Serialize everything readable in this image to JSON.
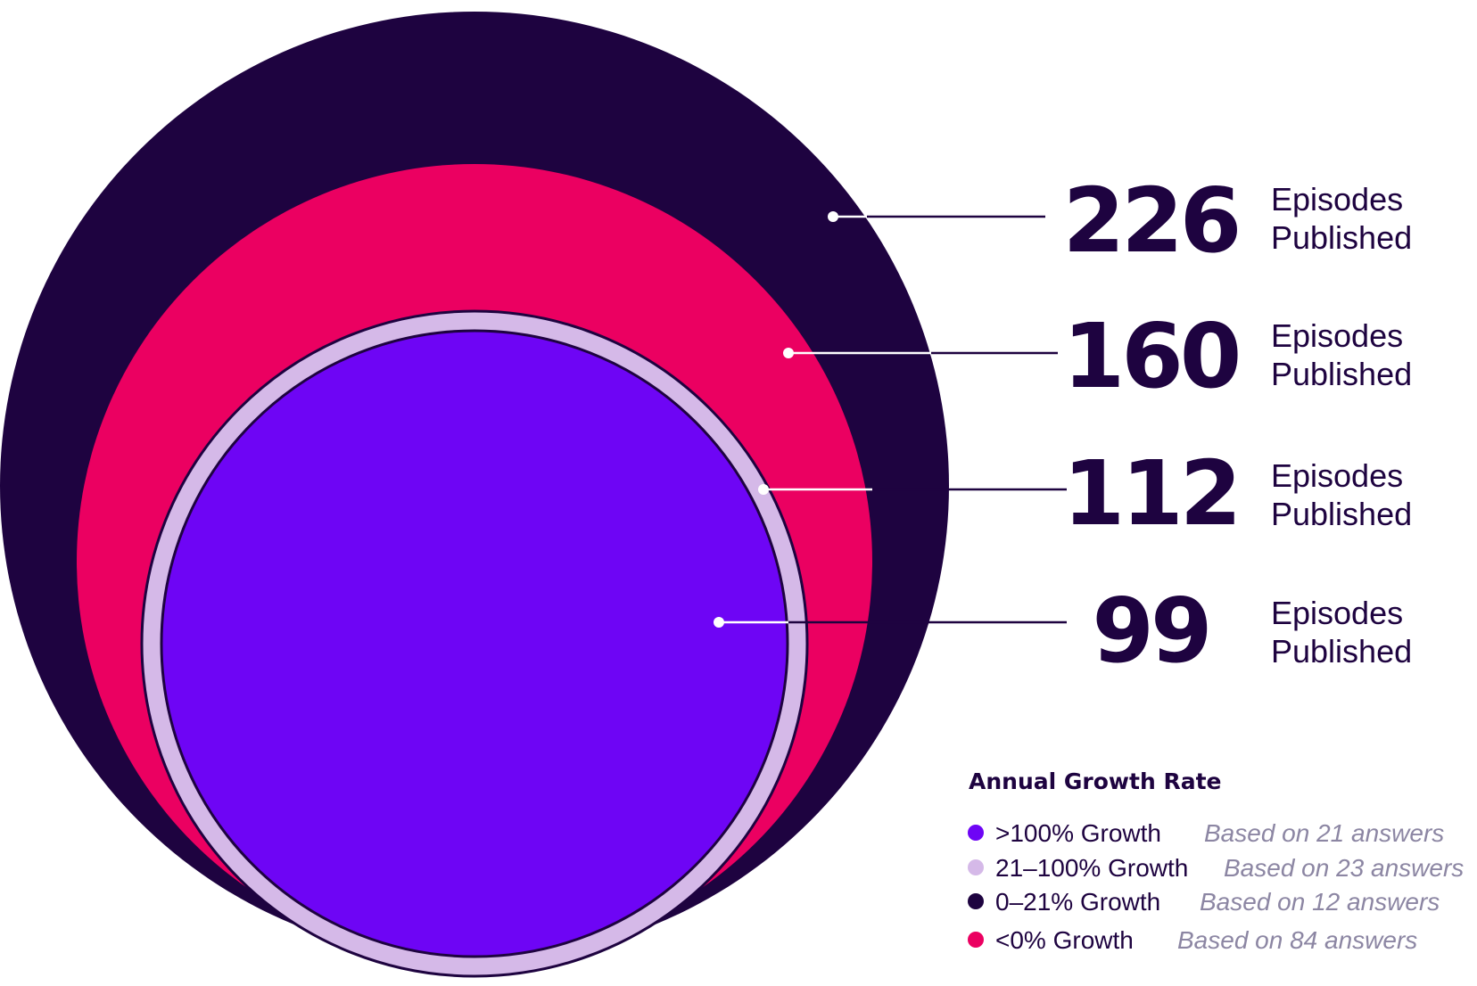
{
  "chart_data": {
    "type": "nested-circles",
    "title": "",
    "unit_label": "Episodes Published",
    "series": [
      {
        "growth": ">100% Growth",
        "episodes": 99,
        "answers": 21,
        "color": "#6e05f5"
      },
      {
        "growth": "21–100% Growth",
        "episodes": 112,
        "answers": 23,
        "color": "#d5b9e8"
      },
      {
        "growth": "<0% Growth",
        "episodes": 160,
        "answers": 84,
        "color": "#eb0061"
      },
      {
        "growth": "0–21% Growth",
        "episodes": 226,
        "answers": 12,
        "color": "#1e0340"
      }
    ],
    "callouts": [
      {
        "value": "226",
        "line1": "Episodes",
        "line2": "Published"
      },
      {
        "value": "160",
        "line1": "Episodes",
        "line2": "Published"
      },
      {
        "value": "112",
        "line1": "Episodes",
        "line2": "Published"
      },
      {
        "value": "99",
        "line1": "Episodes",
        "line2": "Published"
      }
    ],
    "legend": {
      "title": "Annual Growth Rate",
      "items": [
        {
          "label": ">100% Growth",
          "note": "Based on 21 answers",
          "color": "#6e05f5"
        },
        {
          "label": "21–100% Growth",
          "note": "Based on 23 answers",
          "color": "#d5b9e8"
        },
        {
          "label": "0–21% Growth",
          "note": "Based on 12 answers",
          "color": "#1e0340"
        },
        {
          "label": "<0% Growth",
          "note": "Based on 84 answers",
          "color": "#eb0061"
        }
      ]
    }
  }
}
